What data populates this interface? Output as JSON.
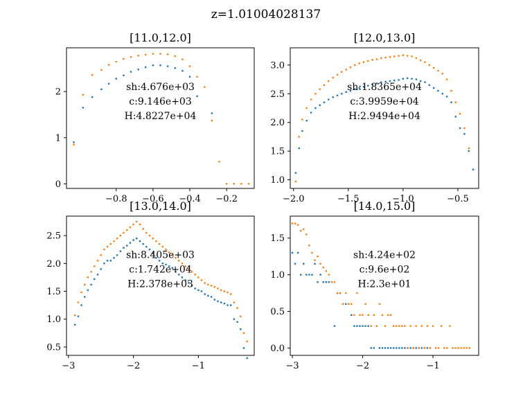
{
  "figure_title": "z=1.01004028137",
  "colors": {
    "series1": "#1f77b4",
    "series2": "#ff7f0e"
  },
  "chart_data": [
    {
      "type": "scatter",
      "title": "[11.0,12.0]",
      "xlim": [
        -1.07,
        -0.05
      ],
      "ylim": [
        -0.1,
        2.95
      ],
      "xticks": [
        -0.8,
        -0.6,
        -0.4,
        -0.2
      ],
      "xtick_labels": [
        "−0.8",
        "−0.6",
        "−0.4",
        "−0.2"
      ],
      "yticks": [
        0,
        1,
        2
      ],
      "ytick_labels": [
        "0",
        "1",
        "2"
      ],
      "annotations": [
        "sh:4.676e+03",
        "c:9.146e+03",
        "H:4.8227e+04"
      ],
      "series": [
        {
          "x": [
            -1.03,
            -0.98,
            -0.93,
            -0.88,
            -0.84,
            -0.8,
            -0.76,
            -0.72,
            -0.68,
            -0.64,
            -0.6,
            -0.56,
            -0.52,
            -0.48,
            -0.44,
            -0.4,
            -0.36,
            -0.28
          ],
          "y": [
            0.9,
            1.65,
            1.88,
            2.05,
            2.17,
            2.28,
            2.35,
            2.43,
            2.48,
            2.53,
            2.57,
            2.57,
            2.55,
            2.51,
            2.45,
            2.32,
            1.9,
            1.53
          ]
        },
        {
          "x": [
            -1.03,
            -0.98,
            -0.93,
            -0.88,
            -0.84,
            -0.8,
            -0.76,
            -0.72,
            -0.68,
            -0.64,
            -0.6,
            -0.56,
            -0.52,
            -0.48,
            -0.44,
            -0.4,
            -0.36,
            -0.32,
            -0.28,
            -0.24,
            -0.2,
            -0.16,
            -0.12,
            -0.08
          ],
          "y": [
            0.85,
            1.93,
            2.36,
            2.47,
            2.58,
            2.65,
            2.71,
            2.75,
            2.78,
            2.8,
            2.82,
            2.82,
            2.81,
            2.77,
            2.7,
            2.55,
            2.32,
            2.1,
            1.37,
            0.48,
            0,
            0,
            0,
            0
          ]
        }
      ]
    },
    {
      "type": "scatter",
      "title": "[12.0,13.0]",
      "xlim": [
        -2.03,
        -0.31
      ],
      "ylim": [
        0.85,
        3.3
      ],
      "xticks": [
        -2.0,
        -1.5,
        -1.0,
        -0.5
      ],
      "xtick_labels": [
        "−2.0",
        "−1.5",
        "−1.0",
        "−0.5"
      ],
      "yticks": [
        1.0,
        1.5,
        2.0,
        2.5,
        3.0
      ],
      "ytick_labels": [
        "1.0",
        "1.5",
        "2.0",
        "2.5",
        "3.0"
      ],
      "annotations": [
        "sh:1.8365e+04",
        "c:3.9959e+04",
        "H:2.9494e+04"
      ],
      "series": [
        {
          "x": [
            -1.98,
            -1.95,
            -1.92,
            -1.88,
            -1.84,
            -1.8,
            -1.76,
            -1.72,
            -1.68,
            -1.64,
            -1.6,
            -1.56,
            -1.52,
            -1.48,
            -1.44,
            -1.4,
            -1.36,
            -1.32,
            -1.28,
            -1.24,
            -1.2,
            -1.16,
            -1.12,
            -1.08,
            -1.04,
            -1.0,
            -0.96,
            -0.92,
            -0.88,
            -0.84,
            -0.8,
            -0.76,
            -0.72,
            -0.68,
            -0.64,
            -0.6,
            -0.56,
            -0.52,
            -0.48,
            -0.44,
            -0.4,
            -0.36
          ],
          "y": [
            1.12,
            1.55,
            1.85,
            2.03,
            2.17,
            2.25,
            2.3,
            2.35,
            2.4,
            2.44,
            2.47,
            2.5,
            2.53,
            2.55,
            2.58,
            2.6,
            2.62,
            2.64,
            2.66,
            2.68,
            2.7,
            2.71,
            2.72,
            2.73,
            2.74,
            2.76,
            2.77,
            2.76,
            2.75,
            2.72,
            2.7,
            2.65,
            2.6,
            2.55,
            2.5,
            2.45,
            2.35,
            2.1,
            1.9,
            1.8,
            1.5,
            1.18
          ]
        },
        {
          "x": [
            -1.98,
            -1.95,
            -1.92,
            -1.88,
            -1.84,
            -1.8,
            -1.76,
            -1.72,
            -1.68,
            -1.64,
            -1.6,
            -1.56,
            -1.52,
            -1.48,
            -1.44,
            -1.4,
            -1.36,
            -1.32,
            -1.28,
            -1.24,
            -1.2,
            -1.16,
            -1.12,
            -1.08,
            -1.04,
            -1.0,
            -0.96,
            -0.92,
            -0.88,
            -0.84,
            -0.8,
            -0.76,
            -0.72,
            -0.68,
            -0.64,
            -0.6,
            -0.56,
            -0.52,
            -0.48,
            -0.44,
            -0.4
          ],
          "y": [
            0.97,
            1.75,
            2.05,
            2.25,
            2.4,
            2.5,
            2.58,
            2.65,
            2.72,
            2.78,
            2.83,
            2.88,
            2.92,
            2.96,
            3.0,
            3.03,
            3.05,
            3.07,
            3.09,
            3.1,
            3.12,
            3.13,
            3.14,
            3.15,
            3.16,
            3.17,
            3.16,
            3.15,
            3.12,
            3.08,
            3.05,
            3.0,
            2.95,
            2.9,
            2.85,
            2.75,
            2.55,
            2.35,
            2.15,
            1.9,
            1.55
          ]
        }
      ]
    },
    {
      "type": "scatter",
      "title": "[13.0,14.0]",
      "xlim": [
        -3.03,
        -0.14
      ],
      "ylim": [
        0.35,
        2.85
      ],
      "xticks": [
        -3,
        -2,
        -1
      ],
      "xtick_labels": [
        "−3",
        "−2",
        "−1"
      ],
      "yticks": [
        0.5,
        1.0,
        1.5,
        2.0,
        2.5
      ],
      "ytick_labels": [
        "0.5",
        "1.0",
        "1.5",
        "2.0",
        "2.5"
      ],
      "annotations": [
        "sh:8.405e+03",
        "c:1.742e+04",
        "H:2.378e+03"
      ],
      "series": [
        {
          "x": [
            -2.9,
            -2.85,
            -2.8,
            -2.75,
            -2.7,
            -2.65,
            -2.6,
            -2.55,
            -2.5,
            -2.45,
            -2.4,
            -2.35,
            -2.3,
            -2.25,
            -2.2,
            -2.15,
            -2.1,
            -2.05,
            -2.0,
            -1.95,
            -1.9,
            -1.85,
            -1.8,
            -1.75,
            -1.7,
            -1.65,
            -1.6,
            -1.55,
            -1.5,
            -1.45,
            -1.4,
            -1.35,
            -1.3,
            -1.25,
            -1.2,
            -1.15,
            -1.1,
            -1.05,
            -1.0,
            -0.95,
            -0.9,
            -0.85,
            -0.8,
            -0.75,
            -0.7,
            -0.65,
            -0.6,
            -0.55,
            -0.5,
            -0.45,
            -0.4,
            -0.35,
            -0.3,
            -0.25
          ],
          "y": [
            0.9,
            1.05,
            1.25,
            1.4,
            1.52,
            1.62,
            1.72,
            1.8,
            1.9,
            2.0,
            2.05,
            2.05,
            2.1,
            2.15,
            2.22,
            2.28,
            2.32,
            2.37,
            2.42,
            2.45,
            2.4,
            2.35,
            2.3,
            2.25,
            2.18,
            2.1,
            2.05,
            2.0,
            1.98,
            1.95,
            1.92,
            1.85,
            1.8,
            1.75,
            1.7,
            1.65,
            1.6,
            1.55,
            1.52,
            1.5,
            1.45,
            1.42,
            1.4,
            1.35,
            1.32,
            1.3,
            1.28,
            1.25,
            1.25,
            1.0,
            0.95,
            0.82,
            0.48,
            0.3
          ]
        },
        {
          "x": [
            -2.9,
            -2.85,
            -2.8,
            -2.75,
            -2.7,
            -2.65,
            -2.6,
            -2.55,
            -2.5,
            -2.45,
            -2.4,
            -2.35,
            -2.3,
            -2.25,
            -2.2,
            -2.15,
            -2.1,
            -2.05,
            -2.0,
            -1.95,
            -1.9,
            -1.85,
            -1.8,
            -1.75,
            -1.7,
            -1.65,
            -1.6,
            -1.55,
            -1.5,
            -1.45,
            -1.4,
            -1.35,
            -1.3,
            -1.25,
            -1.2,
            -1.15,
            -1.1,
            -1.05,
            -1.0,
            -0.95,
            -0.9,
            -0.85,
            -0.8,
            -0.75,
            -0.7,
            -0.65,
            -0.6,
            -0.55,
            -0.5,
            -0.45,
            -0.4,
            -0.35,
            -0.3,
            -0.25
          ],
          "y": [
            1.07,
            1.3,
            1.48,
            1.62,
            1.75,
            1.85,
            1.95,
            2.05,
            2.15,
            2.25,
            2.3,
            2.35,
            2.4,
            2.45,
            2.5,
            2.55,
            2.6,
            2.65,
            2.7,
            2.75,
            2.7,
            2.62,
            2.55,
            2.5,
            2.45,
            2.4,
            2.35,
            2.3,
            2.25,
            2.2,
            2.15,
            2.1,
            2.05,
            2.0,
            1.95,
            1.9,
            1.85,
            1.8,
            1.75,
            1.7,
            1.65,
            1.62,
            1.6,
            1.58,
            1.55,
            1.52,
            1.5,
            1.48,
            1.45,
            1.3,
            1.2,
            1.05,
            0.75,
            0.6
          ]
        }
      ]
    },
    {
      "type": "scatter",
      "title": "[14.0,15.0]",
      "xlim": [
        -3.03,
        -0.35
      ],
      "ylim": [
        -0.1,
        1.8
      ],
      "xticks": [
        -3,
        -2,
        -1
      ],
      "xtick_labels": [
        "−3",
        "−2",
        "−1"
      ],
      "yticks": [
        0.0,
        0.5,
        1.0,
        1.5
      ],
      "ytick_labels": [
        "0.0",
        "0.5",
        "1.0",
        "1.5"
      ],
      "annotations": [
        "sh:4.24e+02",
        "c:9.6e+02",
        "H:2.3e+01"
      ],
      "series": [
        {
          "x": [
            -3.0,
            -2.96,
            -2.92,
            -2.88,
            -2.84,
            -2.8,
            -2.76,
            -2.72,
            -2.68,
            -2.64,
            -2.6,
            -2.56,
            -2.52,
            -2.48,
            -2.44,
            -2.4,
            -2.36,
            -2.32,
            -2.28,
            -2.24,
            -2.2,
            -2.16,
            -2.12,
            -2.08,
            -2.04,
            -2.0,
            -1.96,
            -1.92,
            -1.88,
            -1.84,
            -1.8,
            -1.76,
            -1.72,
            -1.68,
            -1.64,
            -1.6,
            -1.56,
            -1.52,
            -1.48,
            -1.44,
            -1.4,
            -1.36,
            -1.32,
            -1.28,
            -1.24,
            -1.2,
            -1.16,
            -1.12,
            -1.08,
            -1.04
          ],
          "y": [
            1.3,
            1.15,
            1.3,
            1.0,
            1.15,
            1.0,
            1.0,
            1.0,
            1.15,
            0.9,
            1.0,
            0.9,
            0.9,
            0.9,
            0.9,
            0.3,
            0.75,
            0.75,
            0.6,
            0.6,
            0.6,
            0.45,
            0.3,
            0.3,
            0.3,
            0.3,
            0.3,
            0.3,
            0.0,
            0.0,
            0.3,
            0.0,
            0.0,
            0.0,
            0.0,
            0.0,
            0.0,
            0.0,
            0.0,
            0.0,
            0.0,
            0.0,
            0.0,
            0.0,
            0.0,
            0.0,
            0.0,
            0.0,
            0.0,
            0.0
          ]
        },
        {
          "x": [
            -3.0,
            -2.96,
            -2.92,
            -2.88,
            -2.84,
            -2.8,
            -2.76,
            -2.72,
            -2.68,
            -2.64,
            -2.6,
            -2.56,
            -2.52,
            -2.48,
            -2.44,
            -2.4,
            -2.36,
            -2.32,
            -2.28,
            -2.24,
            -2.2,
            -2.16,
            -2.12,
            -2.08,
            -2.04,
            -2.0,
            -1.96,
            -1.92,
            -1.88,
            -1.84,
            -1.8,
            -1.76,
            -1.72,
            -1.68,
            -1.64,
            -1.6,
            -1.56,
            -1.52,
            -1.48,
            -1.44,
            -1.4,
            -1.36,
            -1.32,
            -1.28,
            -1.24,
            -1.2,
            -1.16,
            -1.12,
            -1.08,
            -1.04,
            -1.0,
            -0.96,
            -0.92,
            -0.88,
            -0.84,
            -0.8,
            -0.76,
            -0.72,
            -0.68,
            -0.64,
            -0.6,
            -0.56,
            -0.52,
            -0.48
          ],
          "y": [
            1.7,
            1.7,
            1.68,
            1.6,
            1.62,
            1.55,
            1.4,
            1.3,
            1.2,
            1.25,
            1.15,
            1.1,
            1.05,
            1.0,
            0.9,
            0.9,
            0.75,
            0.75,
            0.6,
            0.75,
            0.6,
            0.6,
            0.45,
            0.75,
            0.45,
            0.45,
            0.6,
            0.45,
            0.3,
            0.45,
            0.3,
            0.6,
            0.45,
            0.3,
            0.45,
            0.45,
            0.3,
            0.3,
            0.3,
            0.3,
            0.3,
            0.0,
            0.3,
            0.0,
            0.3,
            0.0,
            0.3,
            0.0,
            0.3,
            0.0,
            0.3,
            0.0,
            0.0,
            0.3,
            0.0,
            0.0,
            0.3,
            0.0,
            0.0,
            0.0,
            0.0,
            0.0,
            0.0,
            0.0
          ]
        }
      ]
    }
  ]
}
